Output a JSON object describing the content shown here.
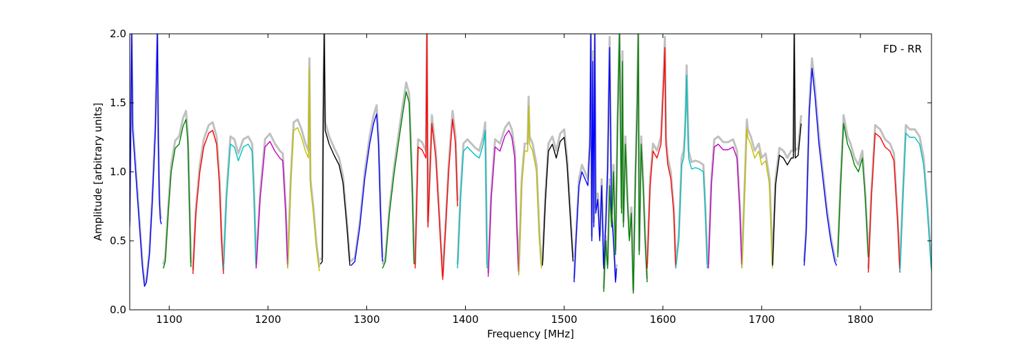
{
  "chart_data": {
    "type": "line",
    "title": "",
    "annotation": "FD - RR",
    "xlabel": "Frequency [MHz]",
    "ylabel": "Amplitude [arbitrary units]",
    "xlim": [
      1060,
      1872
    ],
    "ylim": [
      0.0,
      2.0
    ],
    "xticks": [
      1100,
      1200,
      1300,
      1400,
      1500,
      1600,
      1700,
      1800
    ],
    "yticks": [
      0.0,
      0.5,
      1.0,
      1.5,
      2.0
    ],
    "xtick_labels": [
      "1100",
      "1200",
      "1300",
      "1400",
      "1500",
      "1600",
      "1700",
      "1800"
    ],
    "ytick_labels": [
      "0.0",
      "0.5",
      "1.0",
      "1.5",
      "2.0"
    ],
    "grid": false,
    "legend": "none",
    "background_color": "#c0c0c0",
    "segments": [
      {
        "color": "#0000ff",
        "x": [
          1060,
          1062,
          1063,
          1065,
          1067,
          1070,
          1073,
          1075,
          1077,
          1080,
          1083,
          1086,
          1088,
          1089,
          1090,
          1091,
          1092
        ],
        "y": [
          0.6,
          2.0,
          1.3,
          1.1,
          0.9,
          0.6,
          0.3,
          0.17,
          0.2,
          0.4,
          0.8,
          1.3,
          2.0,
          1.2,
          0.8,
          0.65,
          0.62
        ]
      },
      {
        "color": "#008000",
        "x": [
          1094,
          1096,
          1099,
          1102,
          1106,
          1110,
          1114,
          1117,
          1119,
          1121,
          1122
        ],
        "y": [
          0.3,
          0.35,
          0.7,
          1.0,
          1.17,
          1.2,
          1.33,
          1.38,
          1.2,
          0.6,
          0.31
        ]
      },
      {
        "color": "#ff0000",
        "x": [
          1124,
          1127,
          1131,
          1135,
          1140,
          1144,
          1148,
          1151,
          1153,
          1155
        ],
        "y": [
          0.26,
          0.7,
          1.0,
          1.18,
          1.28,
          1.3,
          1.2,
          0.9,
          0.5,
          0.26
        ]
      },
      {
        "color": "#00bfbf",
        "x": [
          1155,
          1158,
          1162,
          1166,
          1170,
          1175,
          1180,
          1184,
          1186,
          1188
        ],
        "y": [
          0.3,
          0.8,
          1.2,
          1.18,
          1.08,
          1.18,
          1.2,
          1.15,
          0.8,
          0.3
        ]
      },
      {
        "color": "#bf00bf",
        "x": [
          1188,
          1192,
          1197,
          1202,
          1207,
          1212,
          1215,
          1218,
          1220
        ],
        "y": [
          0.3,
          0.8,
          1.18,
          1.22,
          1.15,
          1.1,
          1.08,
          0.7,
          0.3
        ]
      },
      {
        "color": "#bfbf00",
        "x": [
          1220,
          1223,
          1226,
          1230,
          1234,
          1238,
          1241,
          1242,
          1243,
          1246,
          1249,
          1252
        ],
        "y": [
          0.3,
          0.9,
          1.3,
          1.32,
          1.25,
          1.15,
          1.1,
          1.75,
          0.9,
          0.7,
          0.45,
          0.28
        ]
      },
      {
        "color": "#000000",
        "x": [
          1253,
          1255,
          1256,
          1257,
          1258,
          1262,
          1267,
          1272,
          1276,
          1280,
          1283
        ],
        "y": [
          0.33,
          0.35,
          1.4,
          2.0,
          1.3,
          1.2,
          1.12,
          1.05,
          0.92,
          0.6,
          0.32
        ]
      },
      {
        "color": "#0000ff",
        "x": [
          1284,
          1288,
          1293,
          1298,
          1303,
          1307,
          1310,
          1312,
          1314,
          1316
        ],
        "y": [
          0.32,
          0.35,
          0.6,
          0.95,
          1.2,
          1.35,
          1.42,
          1.2,
          0.7,
          0.35
        ]
      },
      {
        "color": "#008000",
        "x": [
          1316,
          1319,
          1323,
          1328,
          1332,
          1336,
          1340,
          1343,
          1346,
          1348
        ],
        "y": [
          0.3,
          0.35,
          0.7,
          1.0,
          1.2,
          1.4,
          1.58,
          1.5,
          0.9,
          0.33
        ]
      },
      {
        "color": "#ff0000",
        "x": [
          1349,
          1352,
          1356,
          1360,
          1361,
          1362,
          1366,
          1370,
          1374,
          1377,
          1380,
          1383,
          1387,
          1390,
          1392
        ],
        "y": [
          0.3,
          1.18,
          1.16,
          1.1,
          2.0,
          0.6,
          1.35,
          1.1,
          0.6,
          0.22,
          0.6,
          1.0,
          1.38,
          1.2,
          0.75
        ]
      },
      {
        "color": "#00bfbf",
        "x": [
          1392,
          1395,
          1398,
          1402,
          1406,
          1410,
          1414,
          1418,
          1420,
          1422
        ],
        "y": [
          0.3,
          0.8,
          1.15,
          1.18,
          1.15,
          1.12,
          1.1,
          1.2,
          1.3,
          0.3
        ]
      },
      {
        "color": "#bf00bf",
        "x": [
          1423,
          1426,
          1430,
          1435,
          1440,
          1444,
          1447,
          1450,
          1452,
          1454
        ],
        "y": [
          0.24,
          0.8,
          1.18,
          1.15,
          1.26,
          1.3,
          1.25,
          1.1,
          0.6,
          0.25
        ]
      },
      {
        "color": "#bfbf00",
        "x": [
          1454,
          1457,
          1460,
          1463,
          1464,
          1465,
          1468,
          1472,
          1475,
          1477
        ],
        "y": [
          0.25,
          0.9,
          1.15,
          1.15,
          1.48,
          1.2,
          1.15,
          1.0,
          0.5,
          0.3
        ]
      },
      {
        "color": "#000000",
        "x": [
          1478,
          1481,
          1484,
          1488,
          1492,
          1496,
          1500,
          1503,
          1506,
          1509
        ],
        "y": [
          0.32,
          0.8,
          1.15,
          1.2,
          1.1,
          1.22,
          1.25,
          1.05,
          0.7,
          0.35
        ]
      },
      {
        "color": "#0000ff",
        "x": [
          1510,
          1512,
          1515,
          1518,
          1521,
          1524,
          1526,
          1527,
          1528,
          1529,
          1530,
          1531,
          1532,
          1534,
          1536,
          1538,
          1540,
          1542,
          1544,
          1546,
          1548,
          1550,
          1552,
          1553
        ],
        "y": [
          0.2,
          0.5,
          0.9,
          1.0,
          0.95,
          0.9,
          1.2,
          2.0,
          0.5,
          1.8,
          0.6,
          2.0,
          0.7,
          0.8,
          0.5,
          0.9,
          0.3,
          0.6,
          1.0,
          1.9,
          0.7,
          0.5,
          0.2,
          0.3
        ]
      },
      {
        "color": "#008000",
        "x": [
          1540,
          1542,
          1544,
          1546,
          1548,
          1550,
          1552,
          1554,
          1556,
          1558,
          1559,
          1560,
          1562,
          1564,
          1566,
          1568,
          1570,
          1572,
          1574,
          1575,
          1576,
          1578,
          1580,
          1582,
          1584
        ],
        "y": [
          0.13,
          0.5,
          0.3,
          0.9,
          0.6,
          1.0,
          0.4,
          1.3,
          2.0,
          0.7,
          1.8,
          0.6,
          1.2,
          0.8,
          0.5,
          0.7,
          0.12,
          0.9,
          1.5,
          2.0,
          0.4,
          1.2,
          0.9,
          0.5,
          0.2
        ]
      },
      {
        "color": "#ff0000",
        "x": [
          1584,
          1587,
          1590,
          1594,
          1598,
          1601,
          1602,
          1603,
          1605,
          1608,
          1611,
          1613
        ],
        "y": [
          0.3,
          0.9,
          1.15,
          1.1,
          1.2,
          1.7,
          1.9,
          1.2,
          1.05,
          0.95,
          0.7,
          0.3
        ]
      },
      {
        "color": "#00bfbf",
        "x": [
          1613,
          1616,
          1619,
          1621,
          1622,
          1623,
          1624,
          1626,
          1629,
          1633,
          1637,
          1641,
          1643,
          1645
        ],
        "y": [
          0.3,
          0.5,
          1.05,
          1.1,
          1.2,
          1.4,
          1.7,
          1.1,
          1.02,
          1.03,
          1.02,
          1.0,
          0.7,
          0.3
        ]
      },
      {
        "color": "#bf00bf",
        "x": [
          1646,
          1649,
          1652,
          1656,
          1661,
          1666,
          1671,
          1675,
          1678,
          1680
        ],
        "y": [
          0.3,
          0.9,
          1.18,
          1.2,
          1.16,
          1.16,
          1.18,
          1.1,
          0.7,
          0.3
        ]
      },
      {
        "color": "#bfbf00",
        "x": [
          1680,
          1683,
          1685,
          1686,
          1689,
          1693,
          1697,
          1700,
          1704,
          1708,
          1711
        ],
        "y": [
          0.3,
          0.9,
          1.32,
          1.25,
          1.2,
          1.1,
          1.15,
          1.05,
          1.08,
          0.9,
          0.3
        ]
      },
      {
        "color": "#000000",
        "x": [
          1711,
          1714,
          1718,
          1722,
          1726,
          1730,
          1732,
          1733,
          1734,
          1737,
          1740
        ],
        "y": [
          0.32,
          0.9,
          1.12,
          1.1,
          1.05,
          1.1,
          1.1,
          2.0,
          1.1,
          1.12,
          1.35
        ]
      },
      {
        "color": "#0000ff",
        "x": [
          1743,
          1745,
          1748,
          1751,
          1754,
          1758,
          1762,
          1766,
          1770,
          1774,
          1776
        ],
        "y": [
          0.32,
          0.55,
          1.4,
          1.75,
          1.55,
          1.2,
          0.95,
          0.7,
          0.5,
          0.35,
          0.32
        ]
      },
      {
        "color": "#008000",
        "x": [
          1777,
          1780,
          1783,
          1787,
          1790,
          1794,
          1798,
          1802,
          1805,
          1808
        ],
        "y": [
          0.38,
          0.9,
          1.35,
          1.2,
          1.15,
          1.05,
          1.0,
          1.1,
          0.8,
          0.38
        ]
      },
      {
        "color": "#ff0000",
        "x": [
          1808,
          1811,
          1815,
          1820,
          1825,
          1830,
          1834,
          1838,
          1840
        ],
        "y": [
          0.27,
          0.8,
          1.28,
          1.25,
          1.18,
          1.15,
          1.08,
          0.6,
          0.27
        ]
      },
      {
        "color": "#00bfbf",
        "x": [
          1840,
          1843,
          1846,
          1850,
          1855,
          1860,
          1864,
          1868,
          1872
        ],
        "y": [
          0.28,
          0.8,
          1.28,
          1.25,
          1.25,
          1.2,
          1.05,
          0.7,
          0.28
        ]
      }
    ]
  }
}
